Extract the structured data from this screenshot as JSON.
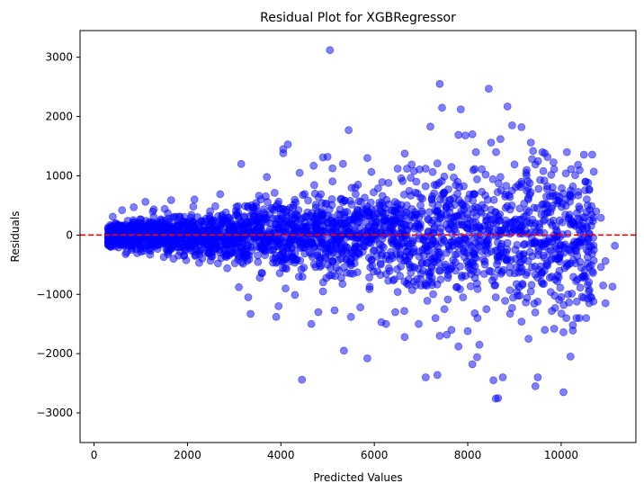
{
  "chart_data": {
    "type": "scatter",
    "title": "Residual Plot for XGBRegressor",
    "xlabel": "Predicted Values",
    "ylabel": "Residuals",
    "xlim": [
      -300,
      11600
    ],
    "ylim": [
      -3500,
      3450
    ],
    "xticks": [
      0,
      2000,
      4000,
      6000,
      8000,
      10000
    ],
    "yticks": [
      -3000,
      -2000,
      -1000,
      0,
      1000,
      2000,
      3000
    ],
    "xtick_labels": [
      "0",
      "2000",
      "4000",
      "6000",
      "8000",
      "10000"
    ],
    "ytick_labels": [
      "−3000",
      "−2000",
      "−1000",
      "0",
      "1000",
      "2000",
      "3000"
    ],
    "grid": false,
    "reference_line": {
      "y": 0,
      "color": "#ff0000",
      "style": "dashed"
    },
    "series": [
      {
        "marker_color": "#0000ff",
        "alpha": 0.5,
        "points": [
          [
            5050,
            3120
          ],
          [
            7400,
            2550
          ],
          [
            8450,
            2470
          ],
          [
            8850,
            2170
          ],
          [
            7450,
            2150
          ],
          [
            7850,
            2120
          ],
          [
            7200,
            1830
          ],
          [
            8950,
            1850
          ],
          [
            9150,
            1820
          ],
          [
            8100,
            1700
          ],
          [
            7800,
            1690
          ],
          [
            7950,
            1680
          ],
          [
            5450,
            1770
          ],
          [
            8500,
            1560
          ],
          [
            8700,
            1620
          ],
          [
            9350,
            1560
          ],
          [
            9400,
            1420
          ],
          [
            9600,
            1400
          ],
          [
            4150,
            1530
          ],
          [
            4050,
            1450
          ],
          [
            4050,
            1380
          ],
          [
            4900,
            1310
          ],
          [
            5000,
            1320
          ],
          [
            5850,
            1300
          ],
          [
            3150,
            1200
          ],
          [
            4700,
            1170
          ],
          [
            6800,
            1190
          ],
          [
            7100,
            1120
          ],
          [
            9850,
            1110
          ],
          [
            10100,
            1040
          ],
          [
            6500,
            1120
          ],
          [
            6700,
            1120
          ],
          [
            6850,
            1080
          ],
          [
            7350,
            1210
          ],
          [
            7650,
            1150
          ],
          [
            8300,
            1110
          ],
          [
            9000,
            1190
          ],
          [
            9450,
            1190
          ],
          [
            10300,
            1010
          ],
          [
            10250,
            820
          ],
          [
            10600,
            760
          ],
          [
            10650,
            490
          ],
          [
            10750,
            400
          ],
          [
            10850,
            290
          ],
          [
            11150,
            -180
          ],
          [
            10950,
            -440
          ],
          [
            10850,
            -540
          ],
          [
            11100,
            -870
          ],
          [
            10900,
            -850
          ],
          [
            10950,
            -1150
          ],
          [
            10600,
            -1150
          ],
          [
            10250,
            -1520
          ],
          [
            10250,
            -1610
          ],
          [
            10200,
            -2050
          ],
          [
            10050,
            -1640
          ],
          [
            10050,
            -2650
          ],
          [
            9850,
            -1580
          ],
          [
            9800,
            -1280
          ],
          [
            9650,
            -1600
          ],
          [
            9500,
            -2400
          ],
          [
            9450,
            -2550
          ],
          [
            9300,
            -1750
          ],
          [
            9150,
            -1460
          ],
          [
            8950,
            -1230
          ],
          [
            8800,
            -1110
          ],
          [
            8750,
            -2400
          ],
          [
            8600,
            -2760
          ],
          [
            8650,
            -2750
          ],
          [
            8550,
            -2450
          ],
          [
            8200,
            -2060
          ],
          [
            8100,
            -2180
          ],
          [
            8250,
            -1850
          ],
          [
            8000,
            -1620
          ],
          [
            7800,
            -1880
          ],
          [
            7650,
            -1600
          ],
          [
            7550,
            -1680
          ],
          [
            7400,
            -1700
          ],
          [
            7350,
            -2360
          ],
          [
            7100,
            -2400
          ],
          [
            6950,
            -1500
          ],
          [
            6650,
            -1720
          ],
          [
            6150,
            -1470
          ],
          [
            6250,
            -1500
          ],
          [
            5850,
            -2080
          ],
          [
            5350,
            -1950
          ],
          [
            4450,
            -2440
          ],
          [
            4650,
            -1500
          ],
          [
            3950,
            -1200
          ],
          [
            3900,
            -1380
          ],
          [
            3350,
            -1330
          ],
          [
            3300,
            -1050
          ],
          [
            4800,
            -1300
          ],
          [
            5150,
            -1270
          ],
          [
            5500,
            -1380
          ],
          [
            5700,
            -1220
          ],
          [
            6450,
            -1300
          ],
          [
            7500,
            -1250
          ],
          [
            8150,
            -1320
          ],
          [
            8400,
            -1250
          ],
          [
            8900,
            -930
          ],
          [
            9350,
            -950
          ],
          [
            9600,
            -820
          ],
          [
            9950,
            -710
          ],
          [
            10150,
            -500
          ],
          [
            10400,
            -450
          ],
          [
            10450,
            150
          ],
          [
            10550,
            120
          ],
          [
            10100,
            600
          ],
          [
            9700,
            780
          ],
          [
            9550,
            930
          ],
          [
            9250,
            1050
          ],
          [
            8700,
            980
          ],
          [
            8200,
            940
          ],
          [
            7700,
            970
          ],
          [
            6900,
            900
          ],
          [
            6300,
            880
          ],
          [
            5650,
            850
          ],
          [
            4400,
            1050
          ],
          [
            3700,
            980
          ],
          [
            2700,
            690
          ],
          [
            2150,
            600
          ],
          [
            1650,
            590
          ],
          [
            1100,
            560
          ],
          [
            850,
            470
          ],
          [
            600,
            420
          ],
          [
            400,
            310
          ],
          [
            450,
            -190
          ],
          [
            700,
            -290
          ],
          [
            1200,
            -330
          ],
          [
            1700,
            -400
          ],
          [
            2250,
            -470
          ],
          [
            2850,
            -560
          ],
          [
            3100,
            -880
          ],
          [
            3550,
            -720
          ],
          [
            4100,
            -900
          ],
          [
            4300,
            -1010
          ],
          [
            4900,
            -950
          ],
          [
            5900,
            -870
          ],
          [
            6500,
            -960
          ],
          [
            7100,
            -820
          ],
          [
            7900,
            -1050
          ],
          [
            8600,
            -1050
          ],
          [
            9100,
            -880
          ],
          [
            9800,
            -700
          ],
          [
            10350,
            -750
          ],
          [
            10700,
            -250
          ],
          [
            9150,
            900
          ],
          [
            9350,
            720
          ],
          [
            8800,
            650
          ],
          [
            8300,
            730
          ],
          [
            7450,
            680
          ],
          [
            7600,
            520
          ],
          [
            8600,
            380
          ],
          [
            9650,
            260
          ],
          [
            10200,
            180
          ],
          [
            10500,
            -120
          ],
          [
            10150,
            -1000
          ],
          [
            9950,
            -400
          ],
          [
            9650,
            -150
          ],
          [
            9200,
            -320
          ],
          [
            8950,
            210
          ],
          [
            9800,
            450
          ],
          [
            10050,
            700
          ]
        ]
      }
    ]
  }
}
